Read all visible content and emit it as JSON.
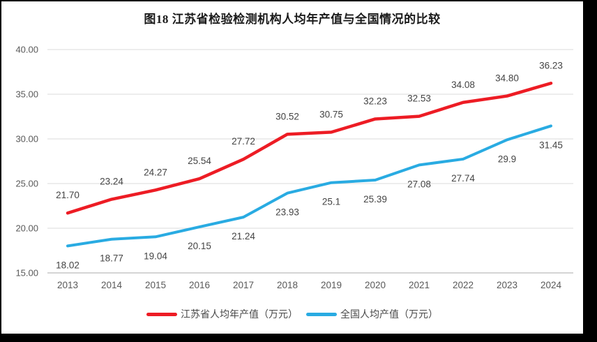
{
  "page": {
    "title": "图18  江苏省检验检测机构人均年产值与全国情况的比较"
  },
  "chart_data": {
    "type": "line",
    "title": "图18  江苏省检验检测机构人均年产值与全国情况的比较",
    "categories": [
      "2013",
      "2014",
      "2015",
      "2016",
      "2017",
      "2018",
      "2019",
      "2020",
      "2021",
      "2022",
      "2023",
      "2024"
    ],
    "series": [
      {
        "name": "江苏省人均年产值（万元）",
        "color": "#ed1c24",
        "stroke_width": 4.5,
        "label_position": "above",
        "values": [
          21.7,
          23.24,
          24.27,
          25.54,
          27.72,
          30.52,
          30.75,
          32.23,
          32.53,
          34.08,
          34.8,
          36.23
        ],
        "labels": [
          "21.70",
          "23.24",
          "24.27",
          "25.54",
          "27.72",
          "30.52",
          "30.75",
          "32.23",
          "32.53",
          "34.08",
          "34.80",
          "36.23"
        ]
      },
      {
        "name": "全国人均产值（万元）",
        "color": "#29abe2",
        "stroke_width": 4,
        "label_position": "below",
        "values": [
          18.02,
          18.77,
          19.04,
          20.15,
          21.24,
          23.93,
          25.1,
          25.39,
          27.08,
          27.74,
          29.9,
          31.45
        ],
        "labels": [
          "18.02",
          "18.77",
          "19.04",
          "20.15",
          "21.24",
          "23.93",
          "25.1",
          "25.39",
          "27.08",
          "27.74",
          "29.9",
          "31.45"
        ]
      }
    ],
    "xlabel": "",
    "ylabel": "",
    "ylim": [
      15,
      40
    ],
    "ytick_step": 5,
    "ytick_labels": [
      "15.00",
      "20.00",
      "25.00",
      "30.00",
      "35.00",
      "40.00"
    ],
    "grid": true,
    "legend_position": "bottom",
    "colors": {
      "grid": "#e2e2e2",
      "axis_line": "#c6c6c6",
      "tick_text": "#595959",
      "point_label_text": "#444444",
      "title_text": "#1a1a1a"
    }
  }
}
